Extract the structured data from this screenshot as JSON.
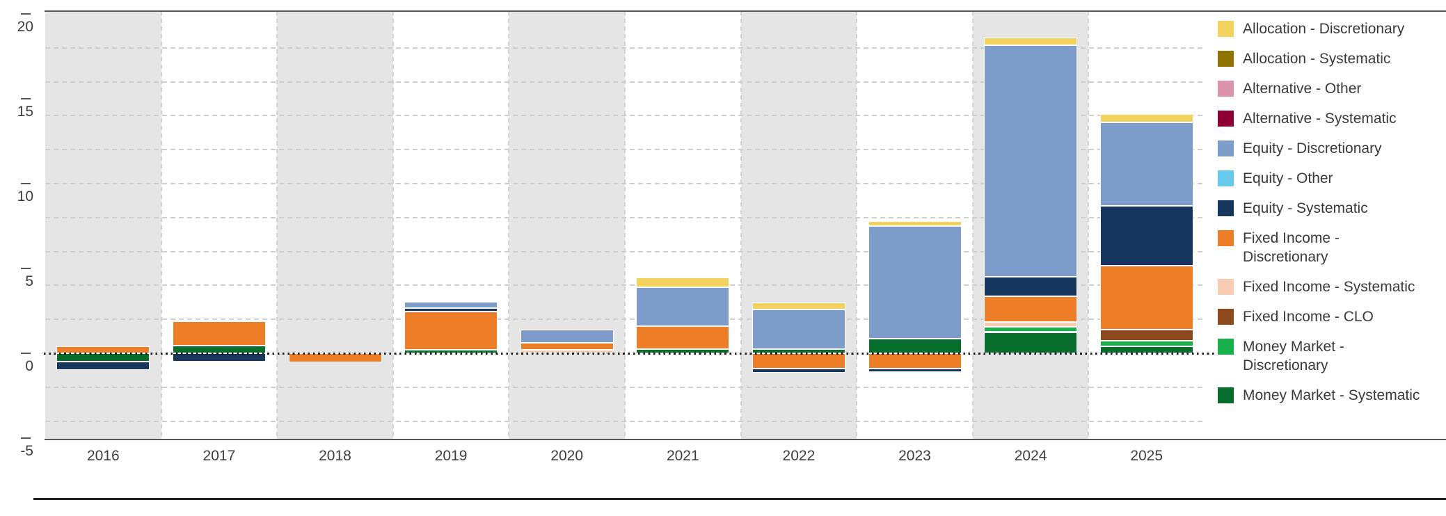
{
  "figure": {
    "background_color": "#ffffff",
    "column_shade_color": "#e5e5e5",
    "frame_color": "#58585a",
    "bottom_rule_color": "#1f1f21",
    "zero_line_style": "black dotted horizontal line at 0",
    "gridline_style": "light gray dashed, every 2 units",
    "text_color": "#3d3d3d"
  },
  "chart_data": {
    "type": "bar",
    "stacked": true,
    "title": "",
    "xlabel": "",
    "ylabel": "",
    "categories": [
      "2016",
      "2017",
      "2018",
      "2019",
      "2020",
      "2021",
      "2022",
      "2023",
      "2024",
      "2025"
    ],
    "shaded_categories": [
      "2016",
      "2018",
      "2020",
      "2022",
      "2024"
    ],
    "ylim": [
      -5.1,
      20.2
    ],
    "y_axis": {
      "tick_labels": [
        "20",
        "15",
        "10",
        "5",
        "0",
        "-5"
      ],
      "tick_values": [
        20,
        15,
        10,
        5,
        0,
        -5
      ],
      "gridline_values": [
        18,
        16,
        14,
        12,
        10,
        8,
        6,
        4,
        2,
        -2,
        -4
      ],
      "zero_reference": 0
    },
    "legend_position": "right",
    "stack_note": "segments stack from zero in reverse legend order (Money Market - Systematic closest to zero); negatives stack downward in same order",
    "series": [
      {
        "name": "Allocation - Discretionary",
        "legend_lines": [
          "Allocation - Discretionary"
        ],
        "color": "#F2D360",
        "values": [
          0,
          0,
          0,
          0,
          0,
          0.55,
          0.4,
          0.3,
          0.45,
          0.5
        ]
      },
      {
        "name": "Allocation - Systematic",
        "legend_lines": [
          "Allocation - Systematic"
        ],
        "color": "#8F7500",
        "values": [
          0,
          0,
          0,
          0,
          0,
          0,
          0,
          0,
          0,
          0
        ]
      },
      {
        "name": "Alternative - Other",
        "legend_lines": [
          "Alternative - Other"
        ],
        "color": "#DD93AC",
        "values": [
          0,
          0,
          0,
          0,
          0,
          0,
          0,
          0,
          0,
          0
        ]
      },
      {
        "name": "Alternative - Systematic",
        "legend_lines": [
          "Alternative - Systematic"
        ],
        "color": "#8E0033",
        "values": [
          0,
          0,
          0,
          0,
          0,
          0,
          0,
          0,
          0,
          0
        ]
      },
      {
        "name": "Equity - Discretionary",
        "legend_lines": [
          "Equity - Discretionary"
        ],
        "color": "#7E9CC9",
        "values": [
          0,
          0,
          0,
          0.4,
          0.8,
          2.3,
          2.35,
          6.65,
          13.65,
          4.9
        ]
      },
      {
        "name": "Equity - Other",
        "legend_lines": [
          "Equity - Other"
        ],
        "color": "#67C9EC",
        "values": [
          0,
          0,
          0,
          0,
          0,
          0,
          0,
          0,
          0,
          0
        ]
      },
      {
        "name": "Equity - Systematic",
        "legend_lines": [
          "Equity - Systematic"
        ],
        "color": "#17365D",
        "values": [
          -0.5,
          -0.5,
          0,
          0.2,
          0,
          0,
          -0.25,
          -0.2,
          1.15,
          3.55
        ]
      },
      {
        "name": "Fixed Income - Discretionary",
        "legend_lines": [
          "Fixed Income -",
          "Discretionary"
        ],
        "color": "#EE7D27",
        "values": [
          0.4,
          1.45,
          -0.55,
          2.25,
          0.4,
          1.35,
          -0.9,
          -0.9,
          1.5,
          3.75
        ]
      },
      {
        "name": "Fixed Income - Systematic",
        "legend_lines": [
          "Fixed Income - Systematic"
        ],
        "color": "#F8CDB4",
        "values": [
          0,
          0,
          0,
          0,
          0.2,
          0,
          0,
          0,
          0.3,
          0
        ]
      },
      {
        "name": "Fixed Income - CLO",
        "legend_lines": [
          "Fixed Income - CLO"
        ],
        "color": "#8C4A1C",
        "values": [
          0,
          0,
          0,
          0,
          0,
          0,
          0,
          0,
          0,
          0.65
        ]
      },
      {
        "name": "Money Market - Discretionary",
        "legend_lines": [
          "Money Market -",
          "Discretionary"
        ],
        "color": "#17B04B",
        "values": [
          0,
          0,
          0,
          0,
          0,
          0,
          0,
          0,
          0.3,
          0.35
        ]
      },
      {
        "name": "Money Market - Systematic",
        "legend_lines": [
          "Money Market - Systematic"
        ],
        "color": "#076D2C",
        "values": [
          -0.5,
          0.45,
          0,
          0.2,
          0,
          0.25,
          0.25,
          0.85,
          1.25,
          0.4
        ]
      }
    ]
  }
}
